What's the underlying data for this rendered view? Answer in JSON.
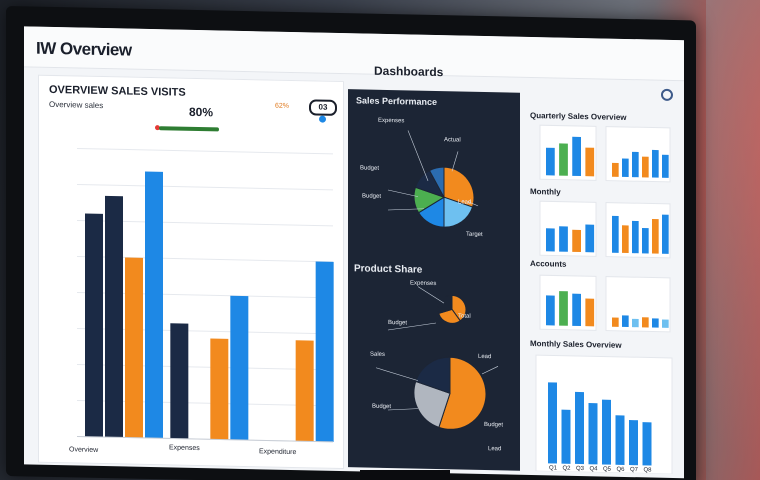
{
  "header": {
    "app_title": "IW Overview",
    "center_title": "Dashboards"
  },
  "left_panel": {
    "title": "OVERVIEW SALES VISITS",
    "subtitle": "Overview sales",
    "value": "80%",
    "percent_label": "62%",
    "pill_label": "03",
    "footer_labels": [
      "Overview",
      "Expenses",
      "Expenditure"
    ]
  },
  "dark_panel": {
    "title": "Sales Performance",
    "title2": "Product Share",
    "labels_top": [
      "Expenses",
      "Actual",
      "Budget",
      "Budget",
      "Lead",
      "Target"
    ],
    "labels_bottom": [
      "Expenses",
      "Total",
      "Budget",
      "Sales",
      "Lead",
      "Budget",
      "Budget",
      "Lead"
    ]
  },
  "right_panel": {
    "titles": [
      "Quarterly Sales Overview",
      "Monthly",
      "Accounts",
      "Monthly Sales Overview"
    ],
    "bottom_ticks": [
      "Q1",
      "Q2",
      "Q3",
      "Q4",
      "Q5",
      "Q6",
      "Q7",
      "Q8"
    ]
  },
  "chart_data": [
    {
      "type": "bar",
      "categories": [
        "Overview",
        "Expenses",
        "Expenditure"
      ],
      "series": [
        {
          "name": "",
          "values": [
            62,
            32,
            0
          ]
        },
        {
          "name": "",
          "values": [
            67,
            0,
            0
          ]
        },
        {
          "name": "",
          "values": [
            50,
            28,
            28
          ]
        },
        {
          "name": "",
          "values": [
            74,
            40,
            50
          ]
        }
      ],
      "ylim": [
        0,
        80
      ],
      "grid": true
    },
    {
      "type": "pie",
      "values": [
        30,
        20,
        16,
        14,
        12,
        8
      ]
    },
    {
      "type": "pie",
      "values": [
        40,
        30,
        30
      ]
    },
    {
      "type": "pie",
      "values": [
        55,
        25,
        20
      ]
    },
    {
      "type": "bar",
      "values": [
        90,
        60,
        80,
        68,
        72,
        55,
        50,
        48
      ]
    }
  ],
  "colors": {
    "navy": "#1b2a45",
    "orange": "#f28a1e",
    "blue": "#1e88e5",
    "green": "#4caf50",
    "grey": "#b0b6bf",
    "light_blue": "#6ec0f0"
  }
}
